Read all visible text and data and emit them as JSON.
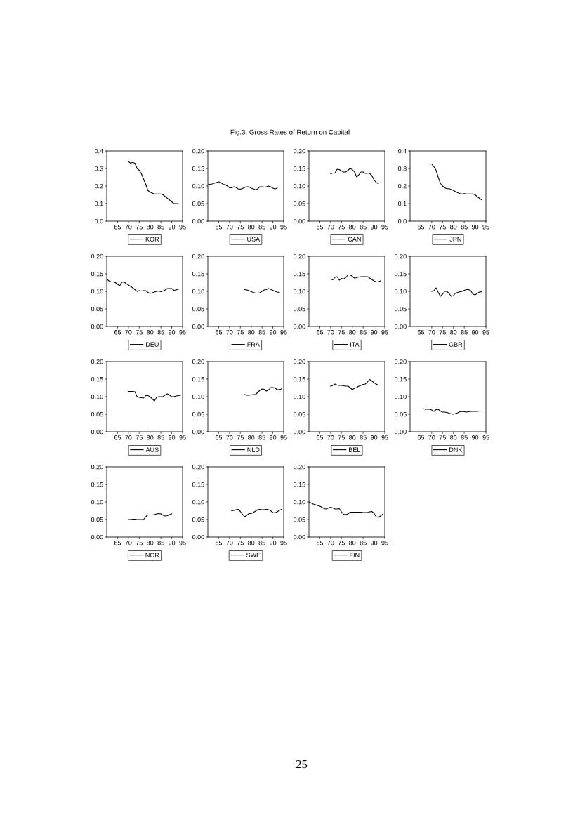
{
  "chart_data": [
    {
      "type": "line",
      "annotations": [
        "Fig.3. Gross Rates of Return on Capital",
        "25"
      ],
      "x": [
        1970,
        1971,
        1972,
        1973,
        1974,
        1975,
        1976,
        1977,
        1978,
        1979,
        1980,
        1981,
        1982,
        1983,
        1984,
        1985,
        1986,
        1987,
        1988,
        1989,
        1990,
        1991,
        1992,
        1993
      ],
      "series": [
        {
          "name": "KOR",
          "color": "#000000",
          "values": [
            0.34,
            0.33,
            0.335,
            0.33,
            0.3,
            0.29,
            0.27,
            0.24,
            0.21,
            0.175,
            0.165,
            0.16,
            0.155,
            0.155,
            0.155,
            0.155,
            0.15,
            0.14,
            0.13,
            0.12,
            0.11,
            0.1,
            0.1,
            0.1
          ]
        }
      ],
      "xlim": [
        1960,
        1995
      ],
      "xticks": [
        {
          "value": 1965,
          "label": "65"
        },
        {
          "value": 1970,
          "label": "70"
        },
        {
          "value": 1975,
          "label": "75"
        },
        {
          "value": 1980,
          "label": "80"
        },
        {
          "value": 1985,
          "label": "85"
        },
        {
          "value": 1990,
          "label": "90"
        },
        {
          "value": 1995,
          "label": "95"
        }
      ],
      "ylim": [
        0,
        0.4
      ],
      "yticks": [
        {
          "value": 0,
          "label": "0.0"
        },
        {
          "value": 0.1,
          "label": "0.1"
        },
        {
          "value": 0.2,
          "label": "0.2"
        },
        {
          "value": 0.3,
          "label": "0.3"
        },
        {
          "value": 0.4,
          "label": "0.4"
        }
      ],
      "legend": "bottom",
      "grid": false
    },
    {
      "type": "line",
      "x": [
        1960,
        1962,
        1964,
        1965,
        1966,
        1967,
        1968,
        1969,
        1970,
        1971,
        1972,
        1973,
        1974,
        1975,
        1976,
        1977,
        1978,
        1979,
        1980,
        1981,
        1982,
        1983,
        1984,
        1985,
        1986,
        1987,
        1988,
        1989,
        1990,
        1991,
        1992
      ],
      "series": [
        {
          "name": "USA",
          "color": "#000000",
          "values": [
            0.104,
            0.106,
            0.11,
            0.112,
            0.11,
            0.105,
            0.104,
            0.1,
            0.095,
            0.095,
            0.098,
            0.096,
            0.092,
            0.091,
            0.093,
            0.096,
            0.098,
            0.098,
            0.094,
            0.092,
            0.089,
            0.092,
            0.098,
            0.098,
            0.097,
            0.098,
            0.1,
            0.098,
            0.094,
            0.092,
            0.094
          ]
        }
      ],
      "xlim": [
        1960,
        1995
      ],
      "xticks": [
        {
          "value": 1965,
          "label": "65"
        },
        {
          "value": 1970,
          "label": "70"
        },
        {
          "value": 1975,
          "label": "75"
        },
        {
          "value": 1980,
          "label": "80"
        },
        {
          "value": 1985,
          "label": "85"
        },
        {
          "value": 1990,
          "label": "90"
        },
        {
          "value": 1995,
          "label": "95"
        }
      ],
      "ylim": [
        0,
        0.2
      ],
      "yticks": [
        {
          "value": 0,
          "label": "0.00"
        },
        {
          "value": 0.05,
          "label": "0.05"
        },
        {
          "value": 0.1,
          "label": "0.10"
        },
        {
          "value": 0.15,
          "label": "0.15"
        },
        {
          "value": 0.2,
          "label": "0.20"
        }
      ],
      "legend": "bottom",
      "grid": false
    },
    {
      "type": "line",
      "x": [
        1970,
        1971,
        1972,
        1973,
        1974,
        1975,
        1976,
        1977,
        1978,
        1979,
        1980,
        1981,
        1982,
        1983,
        1984,
        1985,
        1986,
        1987,
        1988,
        1989,
        1990,
        1991,
        1992
      ],
      "series": [
        {
          "name": "CAN",
          "color": "#000000",
          "values": [
            0.135,
            0.137,
            0.137,
            0.148,
            0.147,
            0.143,
            0.14,
            0.14,
            0.145,
            0.15,
            0.147,
            0.14,
            0.126,
            0.132,
            0.14,
            0.14,
            0.136,
            0.137,
            0.136,
            0.13,
            0.118,
            0.11,
            0.107
          ]
        }
      ],
      "xlim": [
        1960,
        1995
      ],
      "xticks": [
        {
          "value": 1965,
          "label": "65"
        },
        {
          "value": 1970,
          "label": "70"
        },
        {
          "value": 1975,
          "label": "75"
        },
        {
          "value": 1980,
          "label": "80"
        },
        {
          "value": 1985,
          "label": "85"
        },
        {
          "value": 1990,
          "label": "90"
        },
        {
          "value": 1995,
          "label": "95"
        }
      ],
      "ylim": [
        0,
        0.2
      ],
      "yticks": [
        {
          "value": 0,
          "label": "0.00"
        },
        {
          "value": 0.05,
          "label": "0.05"
        },
        {
          "value": 0.1,
          "label": "0.10"
        },
        {
          "value": 0.15,
          "label": "0.15"
        },
        {
          "value": 0.2,
          "label": "0.20"
        }
      ],
      "legend": "bottom",
      "grid": false
    },
    {
      "type": "line",
      "x": [
        1970,
        1971,
        1972,
        1973,
        1974,
        1975,
        1976,
        1977,
        1978,
        1979,
        1980,
        1981,
        1982,
        1983,
        1984,
        1985,
        1986,
        1987,
        1988,
        1989,
        1990,
        1991,
        1992,
        1993
      ],
      "series": [
        {
          "name": "JPN",
          "color": "#000000",
          "values": [
            0.325,
            0.31,
            0.29,
            0.25,
            0.215,
            0.2,
            0.19,
            0.185,
            0.185,
            0.18,
            0.175,
            0.168,
            0.162,
            0.157,
            0.155,
            0.157,
            0.155,
            0.155,
            0.155,
            0.155,
            0.15,
            0.14,
            0.13,
            0.122
          ]
        }
      ],
      "xlim": [
        1960,
        1995
      ],
      "xticks": [
        {
          "value": 1965,
          "label": "65"
        },
        {
          "value": 1970,
          "label": "70"
        },
        {
          "value": 1975,
          "label": "75"
        },
        {
          "value": 1980,
          "label": "80"
        },
        {
          "value": 1985,
          "label": "85"
        },
        {
          "value": 1990,
          "label": "90"
        },
        {
          "value": 1995,
          "label": "95"
        }
      ],
      "ylim": [
        0,
        0.4
      ],
      "yticks": [
        {
          "value": 0,
          "label": "0.0"
        },
        {
          "value": 0.1,
          "label": "0.1"
        },
        {
          "value": 0.2,
          "label": "0.2"
        },
        {
          "value": 0.3,
          "label": "0.3"
        },
        {
          "value": 0.4,
          "label": "0.4"
        }
      ],
      "legend": "bottom",
      "grid": false
    },
    {
      "type": "line",
      "x": [
        1960,
        1961,
        1962,
        1963,
        1964,
        1965,
        1966,
        1967,
        1968,
        1969,
        1970,
        1971,
        1972,
        1973,
        1974,
        1975,
        1976,
        1977,
        1978,
        1979,
        1980,
        1981,
        1982,
        1983,
        1984,
        1985,
        1986,
        1987,
        1988,
        1989,
        1990,
        1991,
        1992,
        1993
      ],
      "series": [
        {
          "name": "DEU",
          "color": "#000000",
          "values": [
            0.135,
            0.13,
            0.127,
            0.127,
            0.125,
            0.12,
            0.116,
            0.126,
            0.127,
            0.122,
            0.118,
            0.114,
            0.11,
            0.105,
            0.1,
            0.102,
            0.101,
            0.102,
            0.102,
            0.097,
            0.094,
            0.096,
            0.098,
            0.1,
            0.101,
            0.099,
            0.101,
            0.104,
            0.108,
            0.108,
            0.108,
            0.103,
            0.104,
            0.106
          ]
        }
      ],
      "xlim": [
        1960,
        1995
      ],
      "xticks": [
        {
          "value": 1965,
          "label": "65"
        },
        {
          "value": 1970,
          "label": "70"
        },
        {
          "value": 1975,
          "label": "75"
        },
        {
          "value": 1980,
          "label": "80"
        },
        {
          "value": 1985,
          "label": "85"
        },
        {
          "value": 1990,
          "label": "90"
        },
        {
          "value": 1995,
          "label": "95"
        }
      ],
      "ylim": [
        0,
        0.2
      ],
      "yticks": [
        {
          "value": 0,
          "label": "0.00"
        },
        {
          "value": 0.05,
          "label": "0.05"
        },
        {
          "value": 0.1,
          "label": "0.10"
        },
        {
          "value": 0.15,
          "label": "0.15"
        },
        {
          "value": 0.2,
          "label": "0.20"
        }
      ],
      "legend": "bottom",
      "grid": false
    },
    {
      "type": "line",
      "x": [
        1977,
        1978,
        1979,
        1980,
        1981,
        1982,
        1983,
        1984,
        1985,
        1986,
        1987,
        1988,
        1989,
        1990,
        1991,
        1992,
        1993
      ],
      "series": [
        {
          "name": "FRA",
          "color": "#000000",
          "values": [
            0.105,
            0.104,
            0.102,
            0.099,
            0.097,
            0.095,
            0.095,
            0.096,
            0.1,
            0.104,
            0.105,
            0.108,
            0.106,
            0.103,
            0.1,
            0.098,
            0.097
          ]
        }
      ],
      "xlim": [
        1960,
        1995
      ],
      "xticks": [
        {
          "value": 1965,
          "label": "65"
        },
        {
          "value": 1970,
          "label": "70"
        },
        {
          "value": 1975,
          "label": "75"
        },
        {
          "value": 1980,
          "label": "80"
        },
        {
          "value": 1985,
          "label": "85"
        },
        {
          "value": 1990,
          "label": "90"
        },
        {
          "value": 1995,
          "label": "95"
        }
      ],
      "ylim": [
        0,
        0.2
      ],
      "yticks": [
        {
          "value": 0,
          "label": "0.00"
        },
        {
          "value": 0.05,
          "label": "0.05"
        },
        {
          "value": 0.1,
          "label": "0.10"
        },
        {
          "value": 0.15,
          "label": "0.15"
        },
        {
          "value": 0.2,
          "label": "0.20"
        }
      ],
      "legend": "bottom",
      "grid": false
    },
    {
      "type": "line",
      "x": [
        1970,
        1971,
        1972,
        1973,
        1974,
        1975,
        1976,
        1977,
        1978,
        1979,
        1980,
        1981,
        1982,
        1983,
        1984,
        1985,
        1986,
        1987,
        1988,
        1989,
        1990,
        1991,
        1992,
        1993
      ],
      "series": [
        {
          "name": "ITA",
          "color": "#000000",
          "values": [
            0.135,
            0.133,
            0.14,
            0.142,
            0.132,
            0.137,
            0.135,
            0.14,
            0.147,
            0.147,
            0.143,
            0.138,
            0.139,
            0.141,
            0.142,
            0.142,
            0.142,
            0.142,
            0.138,
            0.134,
            0.13,
            0.127,
            0.127,
            0.13
          ]
        }
      ],
      "xlim": [
        1960,
        1995
      ],
      "xticks": [
        {
          "value": 1965,
          "label": "65"
        },
        {
          "value": 1970,
          "label": "70"
        },
        {
          "value": 1975,
          "label": "75"
        },
        {
          "value": 1980,
          "label": "80"
        },
        {
          "value": 1985,
          "label": "85"
        },
        {
          "value": 1990,
          "label": "90"
        },
        {
          "value": 1995,
          "label": "95"
        }
      ],
      "ylim": [
        0,
        0.2
      ],
      "yticks": [
        {
          "value": 0,
          "label": "0.00"
        },
        {
          "value": 0.05,
          "label": "0.05"
        },
        {
          "value": 0.1,
          "label": "0.10"
        },
        {
          "value": 0.15,
          "label": "0.15"
        },
        {
          "value": 0.2,
          "label": "0.20"
        }
      ],
      "legend": "bottom",
      "grid": false
    },
    {
      "type": "line",
      "x": [
        1970,
        1971,
        1972,
        1973,
        1974,
        1975,
        1976,
        1977,
        1978,
        1979,
        1980,
        1981,
        1982,
        1983,
        1984,
        1985,
        1986,
        1987,
        1988,
        1989,
        1990,
        1991,
        1992,
        1993
      ],
      "series": [
        {
          "name": "GBR",
          "color": "#000000",
          "values": [
            0.1,
            0.102,
            0.11,
            0.097,
            0.086,
            0.092,
            0.1,
            0.1,
            0.094,
            0.086,
            0.088,
            0.095,
            0.097,
            0.099,
            0.1,
            0.103,
            0.105,
            0.105,
            0.102,
            0.092,
            0.09,
            0.094,
            0.098,
            0.099
          ]
        }
      ],
      "xlim": [
        1960,
        1995
      ],
      "xticks": [
        {
          "value": 1965,
          "label": "65"
        },
        {
          "value": 1970,
          "label": "70"
        },
        {
          "value": 1975,
          "label": "75"
        },
        {
          "value": 1980,
          "label": "80"
        },
        {
          "value": 1985,
          "label": "85"
        },
        {
          "value": 1990,
          "label": "90"
        },
        {
          "value": 1995,
          "label": "95"
        }
      ],
      "ylim": [
        0,
        0.2
      ],
      "yticks": [
        {
          "value": 0,
          "label": "0.00"
        },
        {
          "value": 0.05,
          "label": "0.05"
        },
        {
          "value": 0.1,
          "label": "0.10"
        },
        {
          "value": 0.15,
          "label": "0.15"
        },
        {
          "value": 0.2,
          "label": "0.20"
        }
      ],
      "legend": "bottom",
      "grid": false
    },
    {
      "type": "line",
      "x": [
        1970,
        1971,
        1972,
        1973,
        1974,
        1975,
        1976,
        1977,
        1978,
        1979,
        1980,
        1981,
        1982,
        1983,
        1984,
        1985,
        1986,
        1987,
        1988,
        1989,
        1990,
        1991,
        1992,
        1993,
        1994
      ],
      "series": [
        {
          "name": "AUS",
          "color": "#000000",
          "values": [
            0.115,
            0.115,
            0.115,
            0.114,
            0.1,
            0.098,
            0.097,
            0.096,
            0.103,
            0.103,
            0.1,
            0.094,
            0.088,
            0.098,
            0.1,
            0.1,
            0.1,
            0.105,
            0.108,
            0.104,
            0.1,
            0.1,
            0.102,
            0.103,
            0.104
          ]
        }
      ],
      "xlim": [
        1960,
        1995
      ],
      "xticks": [
        {
          "value": 1965,
          "label": "65"
        },
        {
          "value": 1970,
          "label": "70"
        },
        {
          "value": 1975,
          "label": "75"
        },
        {
          "value": 1980,
          "label": "80"
        },
        {
          "value": 1985,
          "label": "85"
        },
        {
          "value": 1990,
          "label": "90"
        },
        {
          "value": 1995,
          "label": "95"
        }
      ],
      "ylim": [
        0,
        0.2
      ],
      "yticks": [
        {
          "value": 0,
          "label": "0.00"
        },
        {
          "value": 0.05,
          "label": "0.05"
        },
        {
          "value": 0.1,
          "label": "0.10"
        },
        {
          "value": 0.15,
          "label": "0.15"
        },
        {
          "value": 0.2,
          "label": "0.20"
        }
      ],
      "legend": "bottom",
      "grid": false
    },
    {
      "type": "line",
      "x": [
        1977,
        1978,
        1979,
        1980,
        1981,
        1982,
        1983,
        1984,
        1985,
        1986,
        1987,
        1988,
        1989,
        1990,
        1991,
        1992,
        1993,
        1994
      ],
      "series": [
        {
          "name": "NLD",
          "color": "#000000",
          "values": [
            0.106,
            0.104,
            0.104,
            0.105,
            0.106,
            0.106,
            0.112,
            0.118,
            0.122,
            0.121,
            0.116,
            0.119,
            0.126,
            0.126,
            0.125,
            0.12,
            0.12,
            0.122
          ]
        }
      ],
      "xlim": [
        1960,
        1995
      ],
      "xticks": [
        {
          "value": 1965,
          "label": "65"
        },
        {
          "value": 1970,
          "label": "70"
        },
        {
          "value": 1975,
          "label": "75"
        },
        {
          "value": 1980,
          "label": "80"
        },
        {
          "value": 1985,
          "label": "85"
        },
        {
          "value": 1990,
          "label": "90"
        },
        {
          "value": 1995,
          "label": "95"
        }
      ],
      "ylim": [
        0,
        0.2
      ],
      "yticks": [
        {
          "value": 0,
          "label": "0.00"
        },
        {
          "value": 0.05,
          "label": "0.05"
        },
        {
          "value": 0.1,
          "label": "0.10"
        },
        {
          "value": 0.15,
          "label": "0.15"
        },
        {
          "value": 0.2,
          "label": "0.20"
        }
      ],
      "legend": "bottom",
      "grid": false
    },
    {
      "type": "line",
      "x": [
        1970,
        1971,
        1972,
        1973,
        1974,
        1975,
        1976,
        1977,
        1978,
        1979,
        1980,
        1981,
        1982,
        1983,
        1984,
        1985,
        1986,
        1987,
        1988,
        1989,
        1990,
        1991,
        1992
      ],
      "series": [
        {
          "name": "BEL",
          "color": "#000000",
          "values": [
            0.13,
            0.132,
            0.136,
            0.133,
            0.132,
            0.132,
            0.131,
            0.13,
            0.13,
            0.126,
            0.12,
            0.124,
            0.126,
            0.13,
            0.132,
            0.135,
            0.136,
            0.142,
            0.149,
            0.145,
            0.14,
            0.136,
            0.133
          ]
        }
      ],
      "xlim": [
        1960,
        1995
      ],
      "xticks": [
        {
          "value": 1965,
          "label": "65"
        },
        {
          "value": 1970,
          "label": "70"
        },
        {
          "value": 1975,
          "label": "75"
        },
        {
          "value": 1980,
          "label": "80"
        },
        {
          "value": 1985,
          "label": "85"
        },
        {
          "value": 1990,
          "label": "90"
        },
        {
          "value": 1995,
          "label": "95"
        }
      ],
      "ylim": [
        0,
        0.2
      ],
      "yticks": [
        {
          "value": 0,
          "label": "0.00"
        },
        {
          "value": 0.05,
          "label": "0.05"
        },
        {
          "value": 0.1,
          "label": "0.10"
        },
        {
          "value": 0.15,
          "label": "0.15"
        },
        {
          "value": 0.2,
          "label": "0.20"
        }
      ],
      "legend": "bottom",
      "grid": false
    },
    {
      "type": "line",
      "x": [
        1966,
        1967,
        1968,
        1969,
        1970,
        1971,
        1972,
        1973,
        1974,
        1975,
        1976,
        1977,
        1978,
        1979,
        1980,
        1981,
        1982,
        1983,
        1984,
        1985,
        1986,
        1987,
        1988,
        1989,
        1990,
        1991,
        1992,
        1993
      ],
      "series": [
        {
          "name": "DNK",
          "color": "#000000",
          "values": [
            0.066,
            0.064,
            0.064,
            0.064,
            0.062,
            0.058,
            0.063,
            0.064,
            0.059,
            0.056,
            0.056,
            0.055,
            0.053,
            0.051,
            0.05,
            0.052,
            0.054,
            0.057,
            0.058,
            0.057,
            0.056,
            0.057,
            0.058,
            0.058,
            0.058,
            0.058,
            0.059,
            0.059
          ]
        }
      ],
      "xlim": [
        1960,
        1995
      ],
      "xticks": [
        {
          "value": 1965,
          "label": "65"
        },
        {
          "value": 1970,
          "label": "70"
        },
        {
          "value": 1975,
          "label": "75"
        },
        {
          "value": 1980,
          "label": "80"
        },
        {
          "value": 1985,
          "label": "85"
        },
        {
          "value": 1990,
          "label": "90"
        },
        {
          "value": 1995,
          "label": "95"
        }
      ],
      "ylim": [
        0,
        0.2
      ],
      "yticks": [
        {
          "value": 0,
          "label": "0.00"
        },
        {
          "value": 0.05,
          "label": "0.05"
        },
        {
          "value": 0.1,
          "label": "0.10"
        },
        {
          "value": 0.15,
          "label": "0.15"
        },
        {
          "value": 0.2,
          "label": "0.20"
        }
      ],
      "legend": "bottom",
      "grid": false
    },
    {
      "type": "line",
      "x": [
        1970,
        1971,
        1972,
        1973,
        1974,
        1975,
        1976,
        1977,
        1978,
        1979,
        1980,
        1981,
        1982,
        1983,
        1984,
        1985,
        1986,
        1987,
        1988,
        1989,
        1990
      ],
      "series": [
        {
          "name": "NOR",
          "color": "#000000",
          "values": [
            0.05,
            0.05,
            0.051,
            0.051,
            0.05,
            0.05,
            0.05,
            0.05,
            0.058,
            0.063,
            0.063,
            0.063,
            0.064,
            0.066,
            0.067,
            0.066,
            0.062,
            0.06,
            0.061,
            0.064,
            0.066
          ]
        }
      ],
      "xlim": [
        1960,
        1995
      ],
      "xticks": [
        {
          "value": 1965,
          "label": "65"
        },
        {
          "value": 1970,
          "label": "70"
        },
        {
          "value": 1975,
          "label": "75"
        },
        {
          "value": 1980,
          "label": "80"
        },
        {
          "value": 1985,
          "label": "85"
        },
        {
          "value": 1990,
          "label": "90"
        },
        {
          "value": 1995,
          "label": "95"
        }
      ],
      "ylim": [
        0,
        0.2
      ],
      "yticks": [
        {
          "value": 0,
          "label": "0.00"
        },
        {
          "value": 0.05,
          "label": "0.05"
        },
        {
          "value": 0.1,
          "label": "0.10"
        },
        {
          "value": 0.15,
          "label": "0.15"
        },
        {
          "value": 0.2,
          "label": "0.20"
        }
      ],
      "legend": "bottom",
      "grid": false
    },
    {
      "type": "line",
      "x": [
        1971,
        1972,
        1973,
        1974,
        1975,
        1976,
        1977,
        1978,
        1979,
        1980,
        1981,
        1982,
        1983,
        1984,
        1985,
        1986,
        1987,
        1988,
        1989,
        1990,
        1991,
        1992,
        1993,
        1994
      ],
      "series": [
        {
          "name": "SWE",
          "color": "#000000",
          "values": [
            0.075,
            0.076,
            0.078,
            0.079,
            0.073,
            0.065,
            0.058,
            0.062,
            0.067,
            0.067,
            0.07,
            0.074,
            0.078,
            0.079,
            0.078,
            0.078,
            0.079,
            0.078,
            0.075,
            0.07,
            0.069,
            0.072,
            0.076,
            0.079
          ]
        }
      ],
      "xlim": [
        1960,
        1995
      ],
      "xticks": [
        {
          "value": 1965,
          "label": "65"
        },
        {
          "value": 1970,
          "label": "70"
        },
        {
          "value": 1975,
          "label": "75"
        },
        {
          "value": 1980,
          "label": "80"
        },
        {
          "value": 1985,
          "label": "85"
        },
        {
          "value": 1990,
          "label": "90"
        },
        {
          "value": 1995,
          "label": "95"
        }
      ],
      "ylim": [
        0,
        0.2
      ],
      "yticks": [
        {
          "value": 0,
          "label": "0.00"
        },
        {
          "value": 0.05,
          "label": "0.05"
        },
        {
          "value": 0.1,
          "label": "0.10"
        },
        {
          "value": 0.15,
          "label": "0.15"
        },
        {
          "value": 0.2,
          "label": "0.20"
        }
      ],
      "legend": "bottom",
      "grid": false
    },
    {
      "type": "line",
      "x": [
        1960,
        1961,
        1962,
        1963,
        1964,
        1965,
        1966,
        1967,
        1968,
        1969,
        1970,
        1971,
        1972,
        1973,
        1974,
        1975,
        1976,
        1977,
        1978,
        1979,
        1980,
        1981,
        1982,
        1983,
        1984,
        1985,
        1986,
        1987,
        1988,
        1989,
        1990,
        1991,
        1992,
        1993,
        1994
      ],
      "series": [
        {
          "name": "FIN",
          "color": "#000000",
          "values": [
            0.1,
            0.097,
            0.094,
            0.092,
            0.09,
            0.088,
            0.085,
            0.081,
            0.08,
            0.083,
            0.085,
            0.083,
            0.08,
            0.08,
            0.081,
            0.072,
            0.065,
            0.064,
            0.066,
            0.071,
            0.071,
            0.071,
            0.071,
            0.071,
            0.071,
            0.07,
            0.07,
            0.07,
            0.072,
            0.073,
            0.068,
            0.058,
            0.056,
            0.06,
            0.065
          ]
        }
      ],
      "xlim": [
        1960,
        1995
      ],
      "xticks": [
        {
          "value": 1965,
          "label": "65"
        },
        {
          "value": 1970,
          "label": "70"
        },
        {
          "value": 1975,
          "label": "75"
        },
        {
          "value": 1980,
          "label": "80"
        },
        {
          "value": 1985,
          "label": "85"
        },
        {
          "value": 1990,
          "label": "90"
        },
        {
          "value": 1995,
          "label": "95"
        }
      ],
      "ylim": [
        0,
        0.2
      ],
      "yticks": [
        {
          "value": 0,
          "label": "0.00"
        },
        {
          "value": 0.05,
          "label": "0.05"
        },
        {
          "value": 0.1,
          "label": "0.10"
        },
        {
          "value": 0.15,
          "label": "0.15"
        },
        {
          "value": 0.2,
          "label": "0.20"
        }
      ],
      "legend": "bottom",
      "grid": false
    }
  ]
}
